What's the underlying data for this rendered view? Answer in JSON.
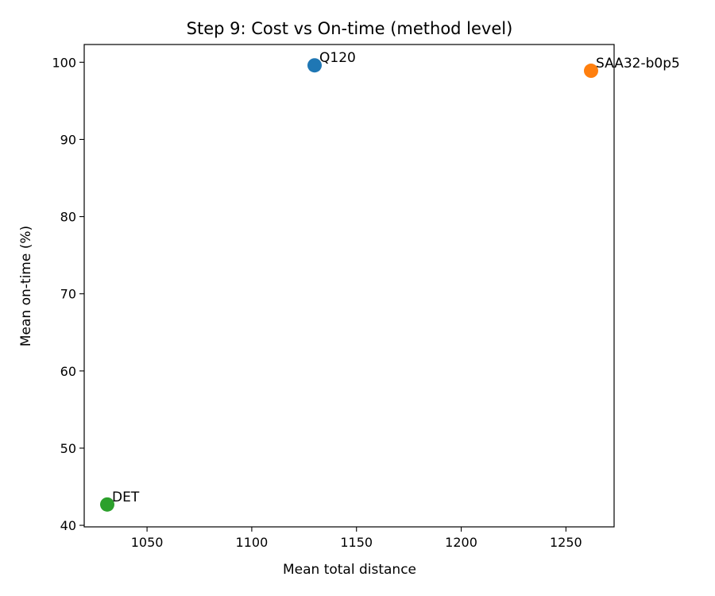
{
  "chart_data": {
    "type": "scatter",
    "title": "Step 9: Cost vs On-time (method level)",
    "xlabel": "Mean total distance",
    "ylabel": "Mean on-time (%)",
    "xlim": [
      1020,
      1273
    ],
    "ylim": [
      39.8,
      102.3
    ],
    "xticks": [
      1050,
      1100,
      1150,
      1200,
      1250
    ],
    "yticks": [
      40,
      50,
      60,
      70,
      80,
      90,
      100
    ],
    "grid": false,
    "legend": "none",
    "points": [
      {
        "label": "Q120",
        "x": 1130,
        "y": 99.6,
        "color": "#1f77b4"
      },
      {
        "label": "SAA32-b0p5",
        "x": 1262,
        "y": 98.9,
        "color": "#ff7f0e"
      },
      {
        "label": "DET",
        "x": 1031,
        "y": 42.7,
        "color": "#2ca02c"
      }
    ]
  }
}
